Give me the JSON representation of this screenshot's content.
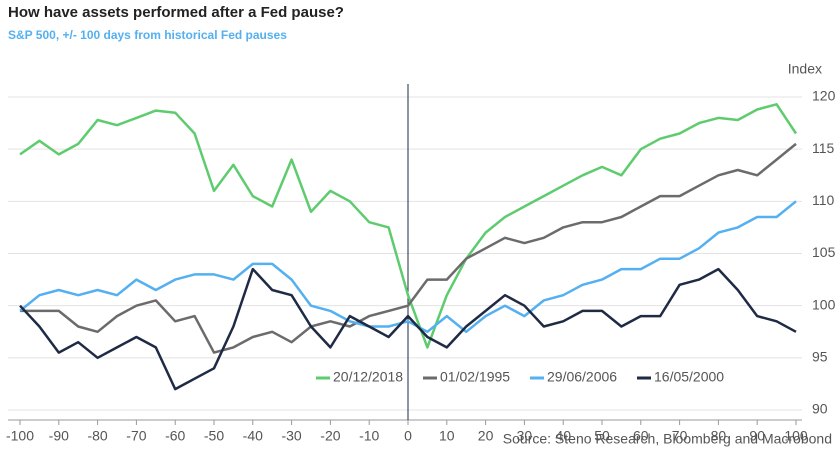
{
  "chart_data": {
    "type": "line",
    "title": "How have assets performed after a Fed pause?",
    "subtitle": "S&P 500, +/- 100 days from historical Fed pauses",
    "y_axis_label": "Index",
    "source": "Source: Steno Research, Bloomberg and Macrobond",
    "x": [
      -100,
      -95,
      -90,
      -85,
      -80,
      -75,
      -70,
      -65,
      -60,
      -55,
      -50,
      -45,
      -40,
      -35,
      -30,
      -25,
      -20,
      -15,
      -10,
      -5,
      0,
      5,
      10,
      15,
      20,
      25,
      30,
      35,
      40,
      45,
      50,
      55,
      60,
      65,
      70,
      75,
      80,
      85,
      90,
      95,
      100
    ],
    "series": [
      {
        "name": "20/12/2018",
        "color": "#5ecc6e",
        "values": [
          114.5,
          115.8,
          114.5,
          115.5,
          117.8,
          117.3,
          118,
          118.7,
          118.5,
          116.5,
          111,
          113.5,
          110.5,
          109.5,
          114,
          109,
          111,
          110,
          108,
          107.5,
          101,
          96,
          101,
          104.5,
          107,
          108.5,
          109.5,
          110.5,
          111.5,
          112.5,
          113.3,
          112.5,
          115,
          116,
          116.5,
          117.5,
          118,
          117.8,
          118.8,
          119.3,
          116.5
        ]
      },
      {
        "name": "01/02/1995",
        "color": "#6b6b6b",
        "values": [
          99.5,
          99.5,
          99.5,
          98,
          97.5,
          99,
          100,
          100.5,
          98.5,
          99,
          95.5,
          96,
          97,
          97.5,
          96.5,
          98,
          98.5,
          98,
          99,
          99.5,
          100,
          102.5,
          102.5,
          104.5,
          105.5,
          106.5,
          106,
          106.5,
          107.5,
          108,
          108,
          108.5,
          109.5,
          110.5,
          110.5,
          111.5,
          112.5,
          113,
          112.5,
          114,
          115.5
        ]
      },
      {
        "name": "29/06/2006",
        "color": "#54b0f0",
        "values": [
          99.5,
          101,
          101.5,
          101,
          101.5,
          101,
          102.5,
          101.5,
          102.5,
          103,
          103,
          102.5,
          104,
          104,
          102.5,
          100,
          99.5,
          98.5,
          98,
          98,
          98.5,
          97.5,
          99,
          97.5,
          99,
          100,
          99,
          100.5,
          101,
          102,
          102.5,
          103.5,
          103.5,
          104.5,
          104.5,
          105.5,
          107,
          107.5,
          108.5,
          108.5,
          110
        ]
      },
      {
        "name": "16/05/2000",
        "color": "#1f2a44",
        "values": [
          100,
          98,
          95.5,
          96.5,
          95,
          96,
          97,
          96,
          92,
          93,
          94,
          98,
          103.5,
          101.5,
          101,
          98,
          96,
          99,
          98,
          97,
          99,
          97,
          96,
          98,
          99.5,
          101,
          100,
          98,
          98.5,
          99.5,
          99.5,
          98,
          99,
          99,
          102,
          102.5,
          103.5,
          101.5,
          99,
          98.5,
          97.5
        ]
      }
    ],
    "xlim": [
      -100,
      100
    ],
    "xticks": [
      -100,
      -90,
      -80,
      -70,
      -60,
      -50,
      -40,
      -30,
      -20,
      -10,
      0,
      10,
      20,
      30,
      40,
      50,
      60,
      70,
      80,
      90,
      100
    ],
    "ylim": [
      90,
      120
    ],
    "yticks": [
      90,
      95,
      100,
      105,
      110,
      115,
      120
    ],
    "grid": true
  }
}
